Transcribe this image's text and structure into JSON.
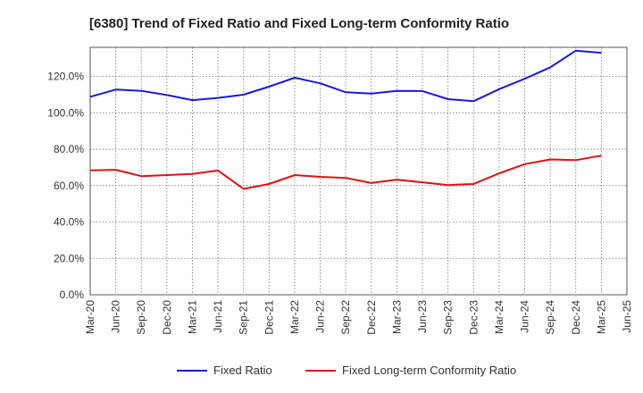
{
  "chart_data": {
    "type": "line",
    "title": "[6380]  Trend of Fixed Ratio and Fixed Long-term Conformity Ratio",
    "xlabel": "",
    "ylabel": "",
    "categories": [
      "Mar-20",
      "Jun-20",
      "Sep-20",
      "Dec-20",
      "Mar-21",
      "Jun-21",
      "Sep-21",
      "Dec-21",
      "Mar-22",
      "Jun-22",
      "Sep-22",
      "Dec-22",
      "Mar-23",
      "Jun-23",
      "Sep-23",
      "Dec-23",
      "Mar-24",
      "Jun-24",
      "Sep-24",
      "Dec-24",
      "Mar-25",
      "Jun-25"
    ],
    "ylim": [
      0,
      136
    ],
    "yticks": [
      "0.0%",
      "20.0%",
      "40.0%",
      "60.0%",
      "80.0%",
      "100.0%",
      "120.0%"
    ],
    "grid": true,
    "legend_position": "bottom",
    "series": [
      {
        "name": "Fixed Ratio",
        "color": "#1a1adb",
        "values": [
          108.8,
          112.8,
          112.1,
          109.8,
          107.0,
          108.2,
          110.0,
          114.4,
          119.3,
          116.2,
          111.3,
          110.6,
          112.1,
          112.0,
          107.5,
          106.4,
          113.0,
          118.7,
          125.0,
          134.2,
          133.0,
          null
        ]
      },
      {
        "name": "Fixed Long-term Conformity Ratio",
        "color": "#e01010",
        "values": [
          68.4,
          68.7,
          65.2,
          65.8,
          66.4,
          68.3,
          58.2,
          60.9,
          65.8,
          64.8,
          64.2,
          61.4,
          63.3,
          61.8,
          60.3,
          60.9,
          66.7,
          71.8,
          74.4,
          74.0,
          76.5,
          null
        ]
      }
    ]
  }
}
